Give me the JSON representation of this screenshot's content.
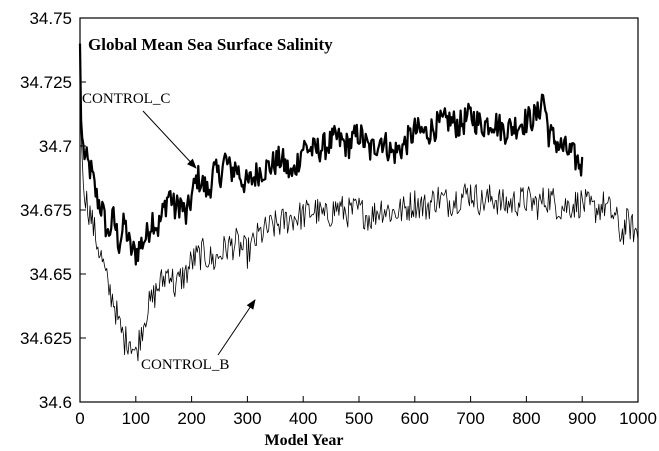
{
  "chart_data": {
    "type": "line",
    "title": "Global Mean Sea Surface Salinity",
    "xlabel": "Model Year",
    "ylabel": "",
    "xlim": [
      0,
      1000
    ],
    "ylim": [
      34.6,
      34.75
    ],
    "x_ticks": [
      0,
      100,
      200,
      300,
      400,
      500,
      600,
      700,
      800,
      900,
      1000
    ],
    "x_tick_labels": [
      "0",
      "100",
      "200",
      "300",
      "400",
      "500",
      "600",
      "700",
      "800",
      "900",
      "1000"
    ],
    "y_ticks": [
      34.6,
      34.625,
      34.65,
      34.675,
      34.7,
      34.725,
      34.75
    ],
    "y_tick_labels": [
      "34.6",
      "34.625",
      "34.65",
      "34.675",
      "34.7",
      "34.725",
      "34.75"
    ],
    "grid": false,
    "series": [
      {
        "name": "CONTROL_C",
        "color": "#000000",
        "line_weight": "heavy",
        "x": [
          0,
          2,
          5,
          10,
          20,
          30,
          40,
          50,
          60,
          70,
          80,
          90,
          100,
          110,
          120,
          130,
          140,
          150,
          160,
          170,
          180,
          190,
          200,
          210,
          220,
          230,
          240,
          250,
          260,
          270,
          280,
          290,
          300,
          320,
          340,
          360,
          380,
          400,
          420,
          440,
          460,
          480,
          500,
          520,
          540,
          560,
          580,
          600,
          620,
          640,
          660,
          680,
          700,
          720,
          740,
          760,
          780,
          800,
          820,
          830,
          840,
          860,
          880,
          900
        ],
        "values": [
          34.74,
          34.71,
          34.7,
          34.695,
          34.69,
          34.68,
          34.675,
          34.665,
          34.672,
          34.662,
          34.67,
          34.66,
          34.658,
          34.662,
          34.665,
          34.672,
          34.668,
          34.675,
          34.682,
          34.675,
          34.678,
          34.672,
          34.68,
          34.688,
          34.685,
          34.682,
          34.69,
          34.688,
          34.695,
          34.69,
          34.692,
          34.687,
          34.685,
          34.69,
          34.692,
          34.695,
          34.688,
          34.7,
          34.698,
          34.7,
          34.703,
          34.7,
          34.705,
          34.698,
          34.703,
          34.697,
          34.7,
          34.706,
          34.705,
          34.708,
          34.71,
          34.708,
          34.712,
          34.708,
          34.71,
          34.706,
          34.708,
          34.71,
          34.712,
          34.72,
          34.705,
          34.7,
          34.697,
          34.692
        ]
      },
      {
        "name": "CONTROL_B",
        "color": "#000000",
        "line_weight": "thin",
        "x": [
          0,
          2,
          5,
          10,
          20,
          30,
          40,
          50,
          60,
          70,
          80,
          90,
          100,
          110,
          120,
          130,
          140,
          150,
          160,
          170,
          180,
          190,
          200,
          220,
          240,
          260,
          280,
          300,
          320,
          340,
          360,
          380,
          400,
          420,
          440,
          460,
          480,
          500,
          520,
          540,
          560,
          580,
          600,
          620,
          640,
          660,
          680,
          700,
          720,
          740,
          760,
          780,
          800,
          820,
          840,
          860,
          880,
          900,
          920,
          940,
          960,
          970,
          980,
          990,
          1000
        ],
        "values": [
          34.73,
          34.705,
          34.69,
          34.68,
          34.672,
          34.663,
          34.655,
          34.645,
          34.64,
          34.63,
          34.624,
          34.625,
          34.618,
          34.628,
          34.636,
          34.64,
          34.645,
          34.648,
          34.652,
          34.645,
          34.648,
          34.65,
          34.655,
          34.658,
          34.655,
          34.66,
          34.662,
          34.658,
          34.665,
          34.668,
          34.67,
          34.672,
          34.673,
          34.675,
          34.672,
          34.676,
          34.674,
          34.675,
          34.672,
          34.676,
          34.674,
          34.675,
          34.678,
          34.676,
          34.68,
          34.678,
          34.68,
          34.682,
          34.678,
          34.68,
          34.677,
          34.678,
          34.679,
          34.677,
          34.68,
          34.676,
          34.677,
          34.678,
          34.675,
          34.677,
          34.672,
          34.665,
          34.67,
          34.668,
          34.665
        ]
      }
    ],
    "annotations": [
      {
        "text": "CONTROL_C",
        "series": "CONTROL_C",
        "arrow_to_x": 230,
        "arrow_to_y": 34.69
      },
      {
        "text": "CONTROL_B",
        "series": "CONTROL_B",
        "arrow_to_x": 330,
        "arrow_to_y": 34.645
      }
    ]
  }
}
